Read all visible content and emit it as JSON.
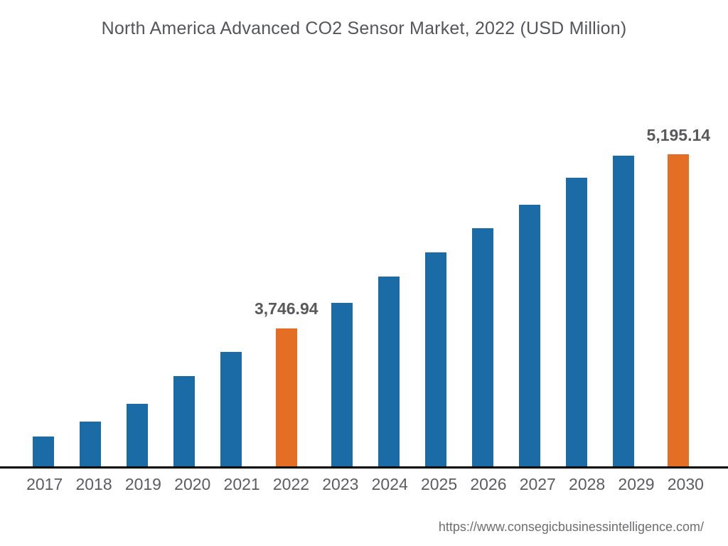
{
  "chart_data": {
    "type": "bar",
    "title": "North America Advanced CO2 Sensor Market, 2022 (USD Million)",
    "xlabel": "",
    "ylabel": "",
    "categories": [
      "2017",
      "2018",
      "2019",
      "2020",
      "2021",
      "2022",
      "2023",
      "2024",
      "2025",
      "2026",
      "2027",
      "2028",
      "2029",
      "2030"
    ],
    "values": [
      2960,
      3070,
      3200,
      3400,
      3575,
      3746.94,
      3930,
      4120,
      4300,
      4475,
      4645,
      4840,
      5000,
      5195.14
    ],
    "value_labels": [
      "",
      "",
      "",
      "",
      "",
      "3,746.94",
      "",
      "",
      "",
      "",
      "",
      "",
      "",
      "5,195.14"
    ],
    "highlighted_categories": [
      "2022",
      "2030"
    ],
    "bar_color": "#1b6ba7",
    "highlight_color": "#e56e25",
    "axis_line_color": "#000000",
    "title_color": "#55565a",
    "label_color": "#58595b",
    "tick_color": "#5c5d60",
    "ylim": [
      2745,
      5210
    ],
    "grid": false,
    "legend": "none"
  },
  "footer": {
    "source_url": "https://www.consegicbusinessintelligence.com/"
  }
}
